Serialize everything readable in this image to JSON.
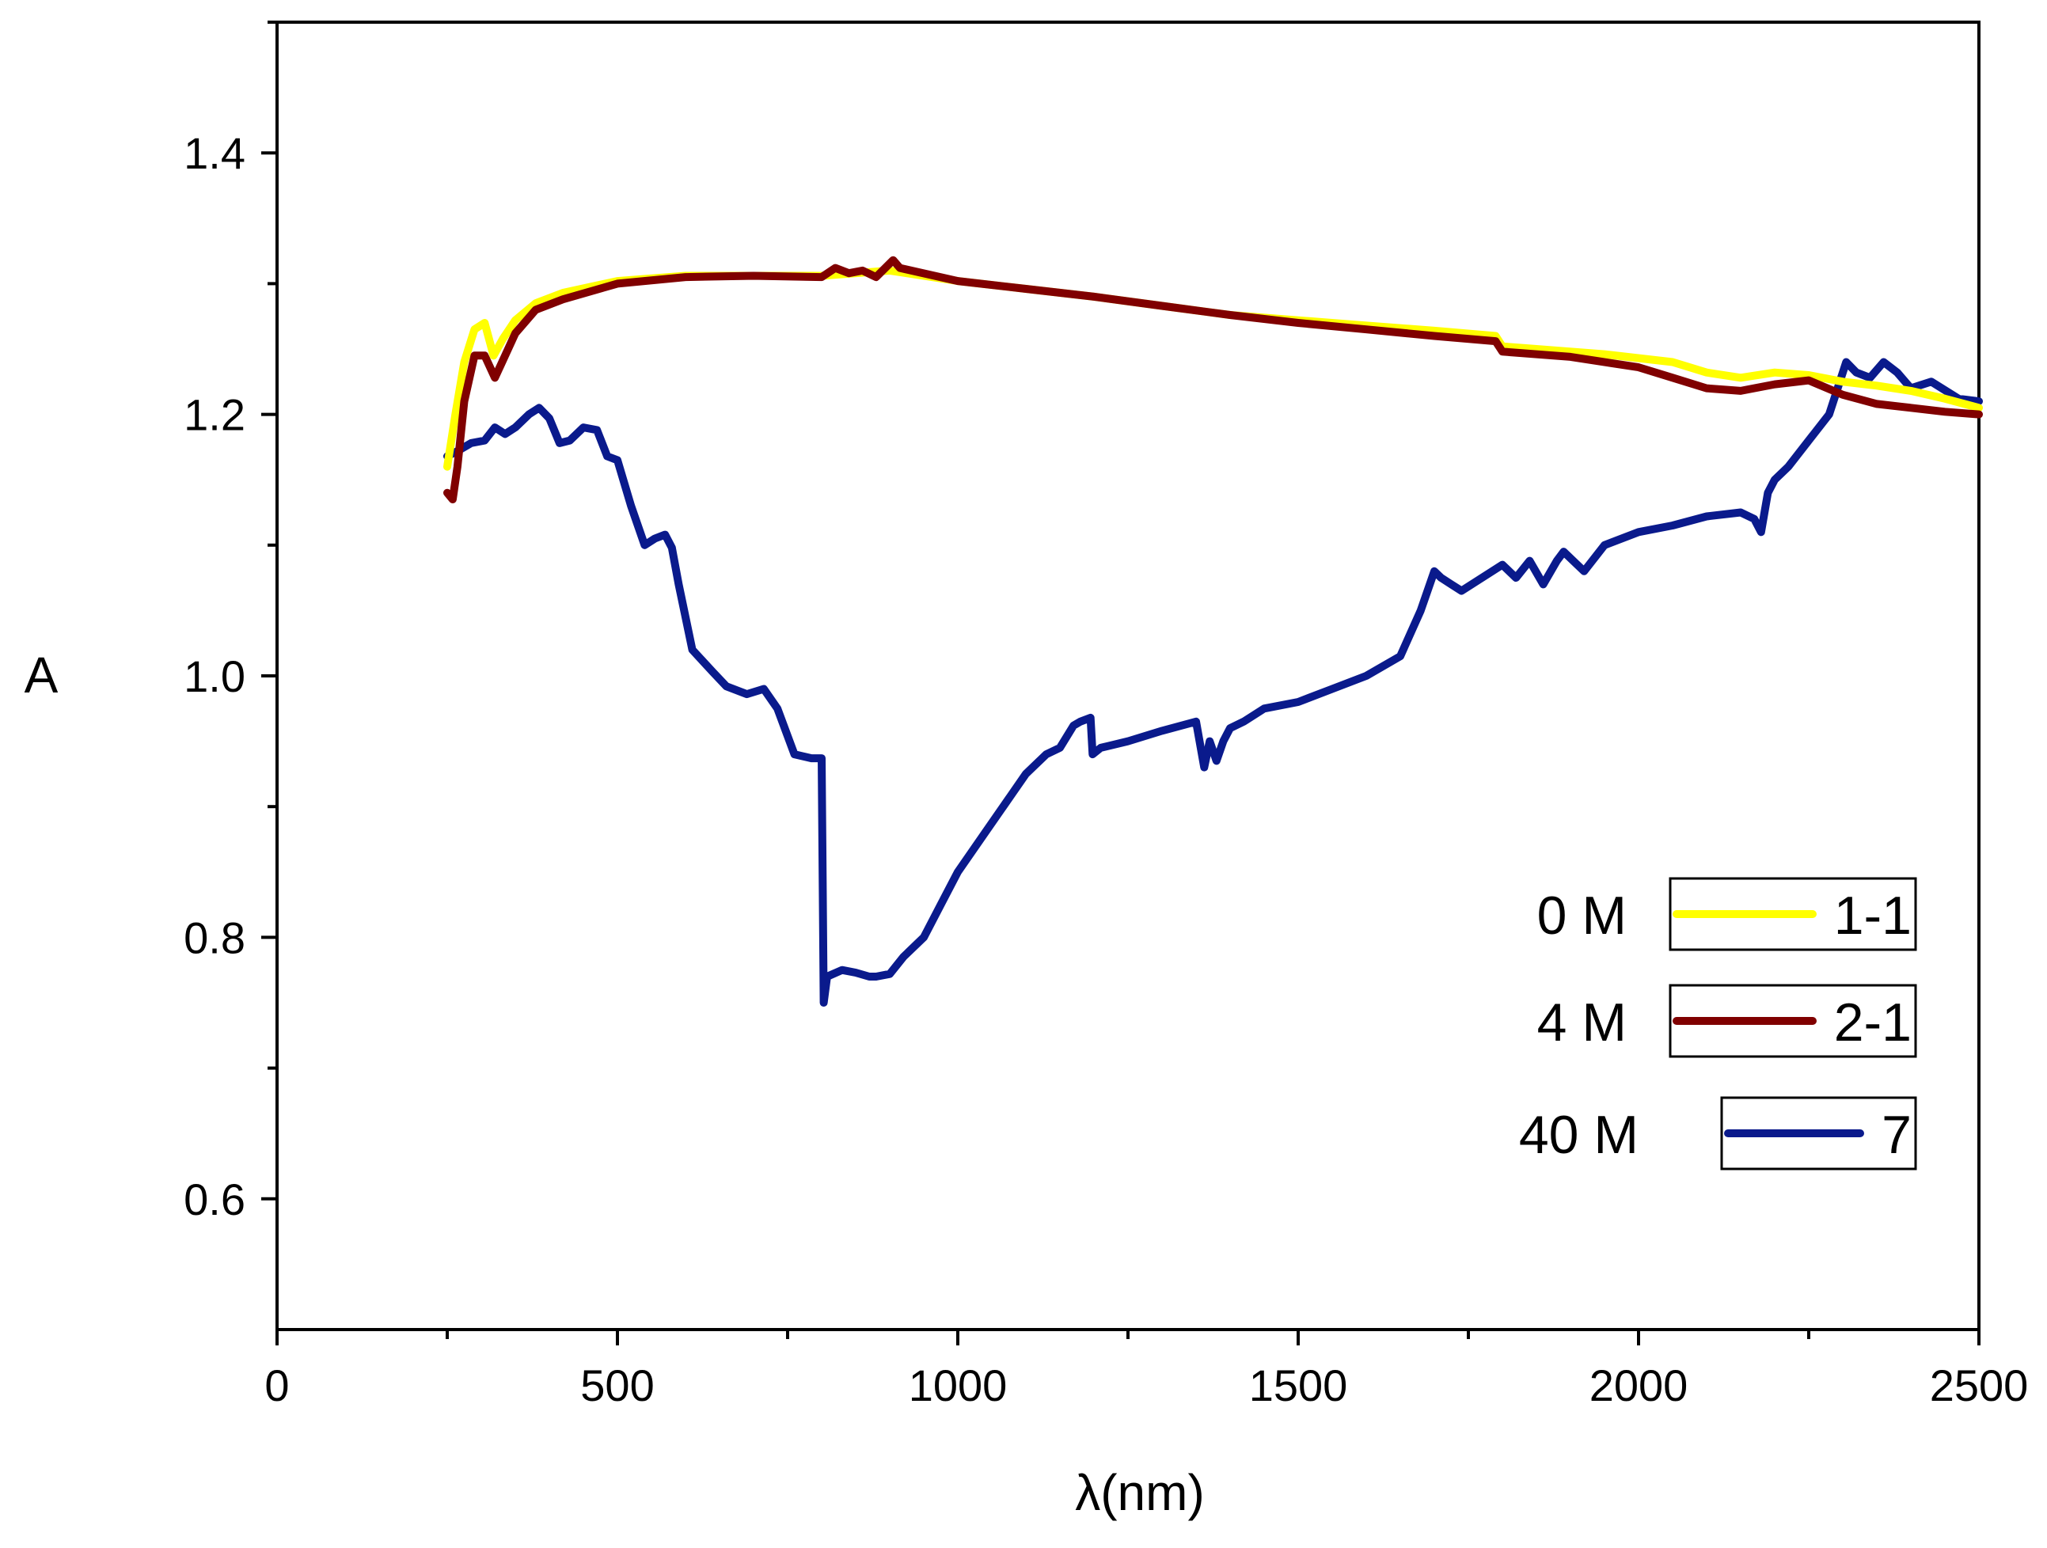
{
  "chart_data": {
    "type": "line",
    "title": "",
    "xlabel": "λ(nm)",
    "ylabel": "A",
    "xlim": [
      0,
      2500
    ],
    "ylim": [
      0.5,
      1.5
    ],
    "xticks": [
      0,
      500,
      1000,
      1500,
      2000,
      2500
    ],
    "xtick_labels": [
      "0",
      "500",
      "1000",
      "1500",
      "2000",
      "2500"
    ],
    "yticks": [
      0.6,
      0.8,
      1.0,
      1.2,
      1.4
    ],
    "ytick_labels": [
      "0.6",
      "0.8",
      "1.0",
      "1.2",
      "1.4"
    ],
    "grid": false,
    "legend_position": "bottom-right",
    "series": [
      {
        "name": "1-1",
        "label": "0 M",
        "color": "#FFFF00",
        "x": [
          250,
          262,
          275,
          290,
          305,
          318,
          332,
          350,
          380,
          420,
          500,
          600,
          700,
          800,
          900,
          1000,
          1100,
          1200,
          1300,
          1400,
          1500,
          1600,
          1700,
          1790,
          1800,
          1850,
          1950,
          2050,
          2100,
          2150,
          2200,
          2250,
          2300,
          2350,
          2400,
          2450,
          2500
        ],
        "y": [
          1.16,
          1.2,
          1.24,
          1.265,
          1.27,
          1.245,
          1.258,
          1.272,
          1.285,
          1.293,
          1.302,
          1.306,
          1.306,
          1.306,
          1.31,
          1.302,
          1.296,
          1.29,
          1.283,
          1.276,
          1.272,
          1.268,
          1.264,
          1.26,
          1.252,
          1.25,
          1.246,
          1.24,
          1.232,
          1.228,
          1.232,
          1.23,
          1.225,
          1.222,
          1.218,
          1.212,
          1.205
        ]
      },
      {
        "name": "2-1",
        "label": "4 M",
        "color": "#800000",
        "x": [
          250,
          258,
          265,
          275,
          290,
          305,
          320,
          335,
          350,
          380,
          420,
          500,
          600,
          700,
          800,
          820,
          840,
          860,
          880,
          905,
          915,
          1000,
          1100,
          1200,
          1300,
          1400,
          1500,
          1600,
          1700,
          1790,
          1800,
          1900,
          2000,
          2050,
          2100,
          2150,
          2200,
          2250,
          2300,
          2350,
          2400,
          2450,
          2500
        ],
        "y": [
          1.14,
          1.135,
          1.16,
          1.21,
          1.245,
          1.245,
          1.228,
          1.245,
          1.262,
          1.28,
          1.288,
          1.3,
          1.305,
          1.306,
          1.305,
          1.312,
          1.308,
          1.31,
          1.305,
          1.318,
          1.312,
          1.302,
          1.296,
          1.29,
          1.283,
          1.276,
          1.27,
          1.265,
          1.26,
          1.256,
          1.248,
          1.244,
          1.236,
          1.228,
          1.22,
          1.218,
          1.223,
          1.226,
          1.215,
          1.208,
          1.205,
          1.202,
          1.2
        ]
      },
      {
        "name": "7",
        "label": "40 M",
        "color": "#0A1A8C",
        "x": [
          250,
          265,
          285,
          305,
          320,
          335,
          350,
          370,
          385,
          400,
          415,
          430,
          450,
          470,
          485,
          500,
          520,
          540,
          555,
          570,
          580,
          590,
          610,
          640,
          660,
          690,
          715,
          735,
          760,
          785,
          800,
          803,
          808,
          830,
          850,
          870,
          880,
          900,
          920,
          950,
          980,
          1000,
          1040,
          1080,
          1100,
          1130,
          1150,
          1170,
          1180,
          1195,
          1198,
          1210,
          1250,
          1300,
          1350,
          1362,
          1370,
          1380,
          1390,
          1400,
          1420,
          1450,
          1500,
          1550,
          1600,
          1650,
          1680,
          1700,
          1710,
          1725,
          1740,
          1800,
          1820,
          1840,
          1860,
          1880,
          1890,
          1920,
          1950,
          2000,
          2050,
          2100,
          2150,
          2170,
          2180,
          2190,
          2200,
          2220,
          2250,
          2280,
          2305,
          2320,
          2340,
          2360,
          2380,
          2400,
          2430,
          2470,
          2500
        ],
        "y": [
          1.168,
          1.172,
          1.178,
          1.18,
          1.19,
          1.185,
          1.19,
          1.2,
          1.205,
          1.197,
          1.178,
          1.18,
          1.19,
          1.188,
          1.168,
          1.165,
          1.13,
          1.1,
          1.105,
          1.108,
          1.098,
          1.07,
          1.02,
          1.003,
          0.992,
          0.986,
          0.99,
          0.975,
          0.94,
          0.937,
          0.937,
          0.75,
          0.77,
          0.775,
          0.773,
          0.77,
          0.77,
          0.772,
          0.785,
          0.8,
          0.83,
          0.85,
          0.88,
          0.91,
          0.925,
          0.94,
          0.945,
          0.962,
          0.965,
          0.968,
          0.94,
          0.945,
          0.95,
          0.958,
          0.965,
          0.93,
          0.95,
          0.935,
          0.95,
          0.96,
          0.965,
          0.975,
          0.98,
          0.99,
          1.0,
          1.015,
          1.05,
          1.08,
          1.075,
          1.07,
          1.065,
          1.085,
          1.075,
          1.088,
          1.07,
          1.088,
          1.095,
          1.08,
          1.1,
          1.11,
          1.115,
          1.122,
          1.125,
          1.12,
          1.11,
          1.14,
          1.15,
          1.16,
          1.18,
          1.2,
          1.24,
          1.232,
          1.228,
          1.24,
          1.232,
          1.22,
          1.225,
          1.212,
          1.21
        ]
      }
    ]
  }
}
